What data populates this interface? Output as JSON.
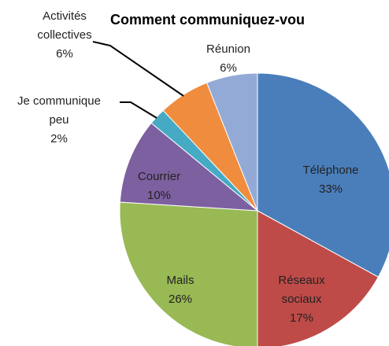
{
  "chart_data": {
    "type": "pie",
    "title": "Comment communiquez-vou",
    "categories": [
      "Téléphone",
      "Réseaux sociaux",
      "Mails",
      "Courrier",
      "Je communique peu",
      "Activités collectives",
      "Réunion"
    ],
    "values": [
      33,
      17,
      26,
      10,
      2,
      6,
      6
    ],
    "value_labels": [
      "33%",
      "17%",
      "26%",
      "10%",
      "2%",
      "6%",
      "6%"
    ],
    "colors": [
      "#4a7ebb",
      "#be4b48",
      "#98b954",
      "#7d60a0",
      "#46aac5",
      "#f08c3e",
      "#94aad6"
    ]
  }
}
